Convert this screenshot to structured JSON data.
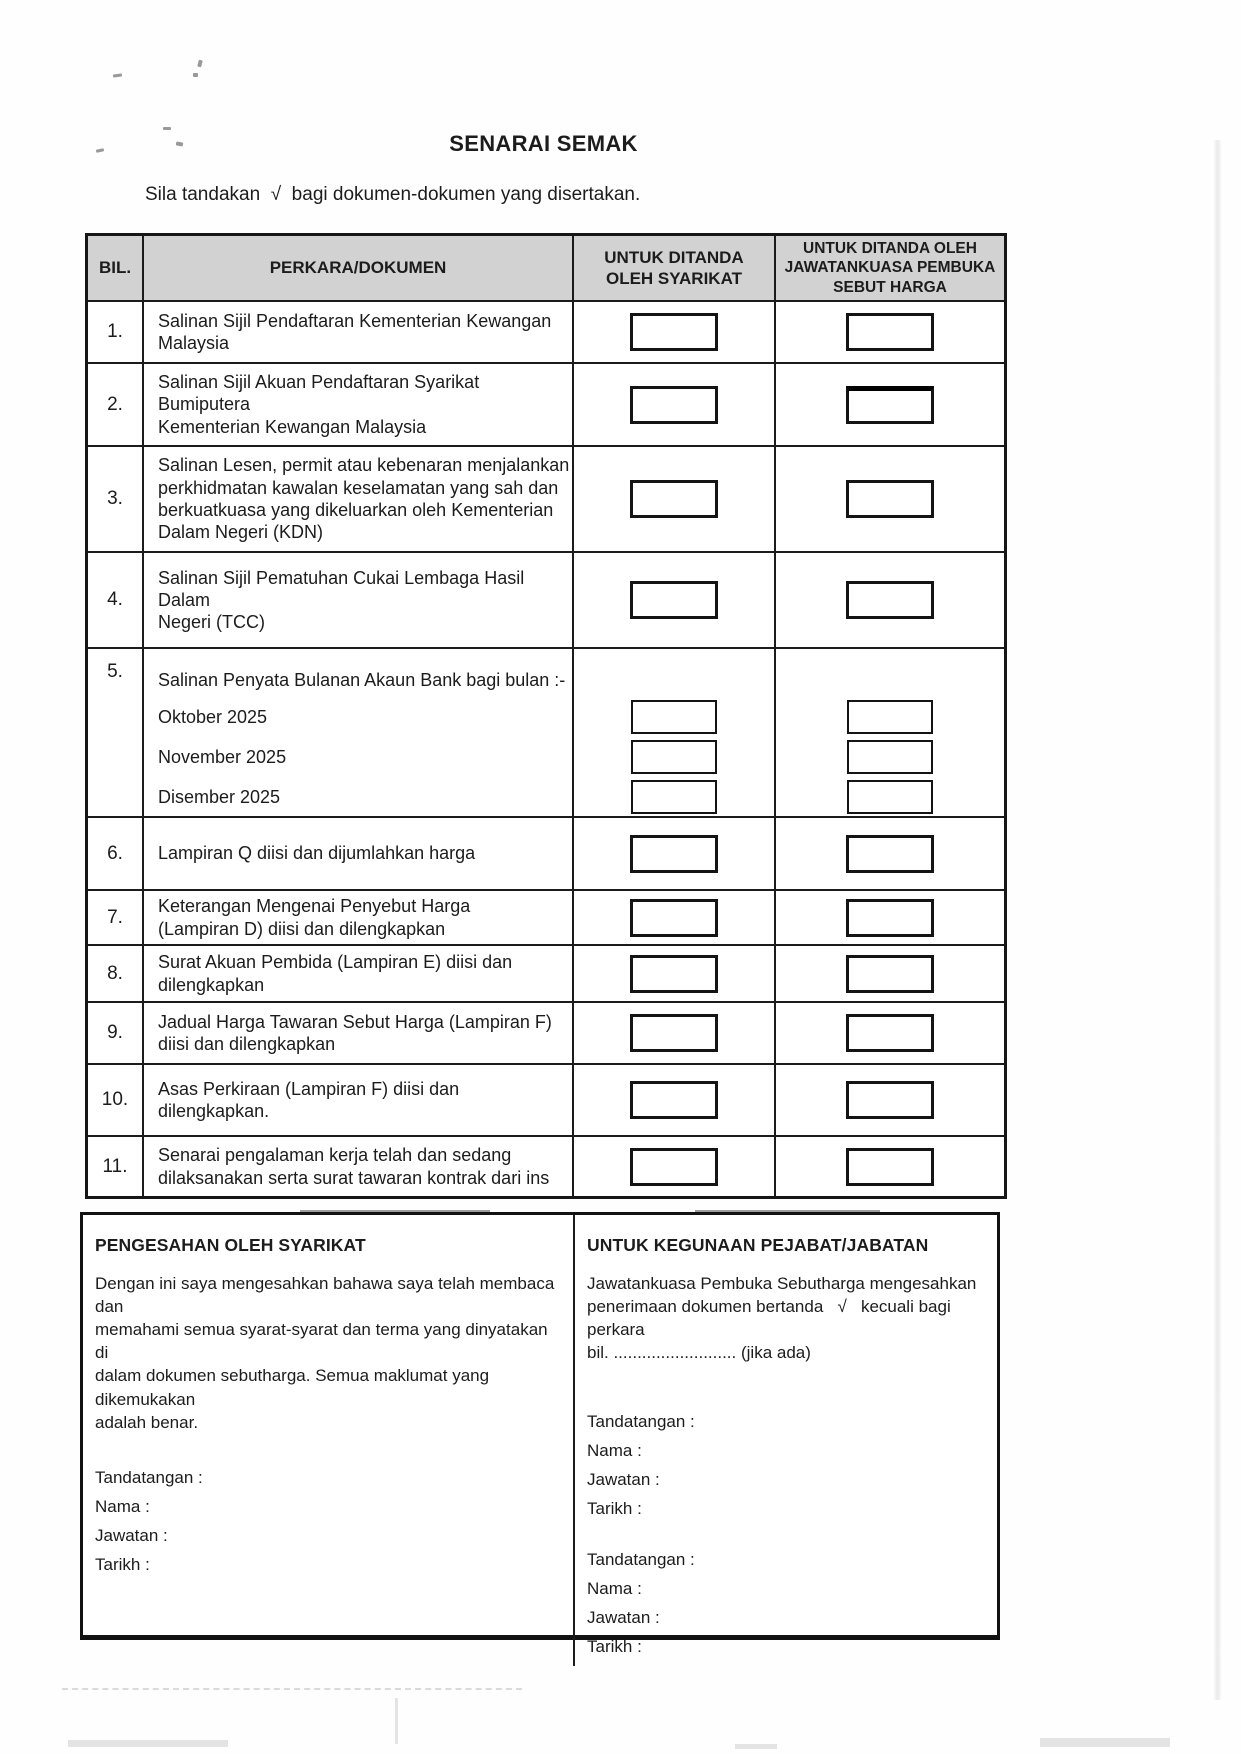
{
  "page": {
    "title": "SENARAI SEMAK",
    "instruction": "Sila tandakan  √  bagi dokumen-dokumen yang disertakan."
  },
  "table": {
    "headers": {
      "bil": "BIL.",
      "perkara": "PERKARA/DOKUMEN",
      "syarikat": "UNTUK DITANDA\nOLEH SYARIKAT",
      "jawatankuasa": "UNTUK DITANDA OLEH\nJAWATANKUASA PEMBUKA\nSEBUT HARGA"
    },
    "rows": [
      {
        "num": "1.",
        "text": "Salinan Sijil Pendaftaran Kementerian Kewangan\nMalaysia"
      },
      {
        "num": "2.",
        "text": "Salinan Sijil Akuan Pendaftaran Syarikat Bumiputera\nKementerian Kewangan Malaysia"
      },
      {
        "num": "3.",
        "text": "Salinan Lesen, permit atau kebenaran menjalankan\nperkhidmatan kawalan keselamatan yang sah dan\nberkuatkuasa yang dikeluarkan oleh Kementerian\nDalam Negeri (KDN)"
      },
      {
        "num": "4.",
        "text": "Salinan Sijil Pematuhan Cukai Lembaga Hasil Dalam\nNegeri (TCC)"
      },
      {
        "num": "5.",
        "text": "Salinan Penyata Bulanan Akaun Bank bagi bulan :-",
        "months": [
          "Oktober 2025",
          "November 2025",
          "Disember 2025"
        ]
      },
      {
        "num": "6.",
        "text": "Lampiran Q diisi dan dijumlahkan harga"
      },
      {
        "num": "7.",
        "text": "Keterangan Mengenai Penyebut Harga\n(Lampiran D) diisi dan dilengkapkan"
      },
      {
        "num": "8.",
        "text": "Surat Akuan Pembida (Lampiran E) diisi dan\ndilengkapkan"
      },
      {
        "num": "9.",
        "text": "Jadual Harga Tawaran Sebut Harga (Lampiran F)\ndiisi dan dilengkapkan"
      },
      {
        "num": "10.",
        "text": "Asas Perkiraan (Lampiran F) diisi dan dilengkapkan."
      },
      {
        "num": "11.",
        "text": "Senarai pengalaman kerja telah dan sedang\ndilaksanakan serta surat tawaran kontrak dari ins"
      }
    ]
  },
  "footer": {
    "left": {
      "heading": "PENGESAHAN OLEH SYARIKAT",
      "body": "Dengan ini saya mengesahkan bahawa saya telah membaca dan\nmemahami semua syarat-syarat dan terma yang dinyatakan di\ndalam dokumen sebutharga. Semua maklumat yang dikemukakan\nadalah benar."
    },
    "right": {
      "heading": "UNTUK KEGUNAAN PEJABAT/JABATAN",
      "body": "Jawatankuasa Pembuka Sebutharga mengesahkan\npenerimaan dokumen bertanda   √   kecuali bagi perkara\nbil. .......................... (jika ada)"
    },
    "sig_labels": [
      "Tandatangan :",
      "Nama :",
      "Jawatan :",
      "Tarikh :"
    ]
  },
  "colors": {
    "header_bg": "#d2d2d2",
    "border": "#1a1a1a",
    "text": "#1c1c1c",
    "page_bg": "#fefefe"
  }
}
